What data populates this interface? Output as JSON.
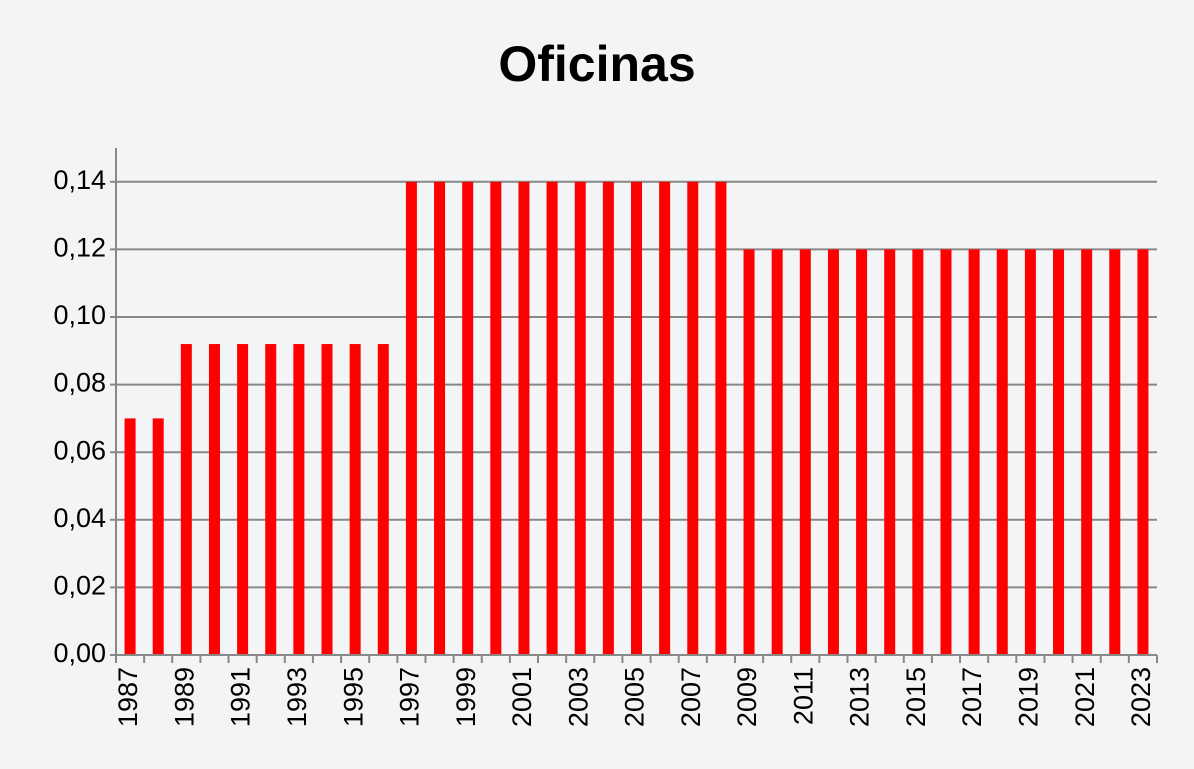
{
  "chart_data": {
    "type": "bar",
    "title": "Oficinas",
    "categories": [
      "1987",
      null,
      "1989",
      null,
      "1991",
      null,
      "1993",
      null,
      "1995",
      null,
      "1997",
      null,
      "1999",
      null,
      "2001",
      null,
      "2003",
      null,
      "2005",
      null,
      "2007",
      null,
      "2009",
      null,
      "2011",
      null,
      "2013",
      null,
      "2015",
      null,
      "2017",
      null,
      "2019",
      null,
      "2021",
      null,
      "2023"
    ],
    "values": [
      0.07,
      0.07,
      0.092,
      0.092,
      0.092,
      0.092,
      0.092,
      0.092,
      0.092,
      0.092,
      0.14,
      0.14,
      0.14,
      0.14,
      0.14,
      0.14,
      0.14,
      0.14,
      0.14,
      0.14,
      0.14,
      0.14,
      0.12,
      0.12,
      0.12,
      0.12,
      0.12,
      0.12,
      0.12,
      0.12,
      0.12,
      0.12,
      0.12,
      0.12,
      0.12,
      0.12,
      0.12
    ],
    "color": "#ff0000",
    "ylim": [
      0,
      0.15
    ],
    "yticks": [
      {
        "value": 0,
        "label": "0,00"
      },
      {
        "value": 0.02,
        "label": "0,02"
      },
      {
        "value": 0.04,
        "label": "0,04"
      },
      {
        "value": 0.06,
        "label": "0,06"
      },
      {
        "value": 0.08,
        "label": "0,08"
      },
      {
        "value": 0.1,
        "label": "0,10"
      },
      {
        "value": 0.12,
        "label": "0,12"
      },
      {
        "value": 0.14,
        "label": "0,14"
      }
    ],
    "grid": true
  }
}
